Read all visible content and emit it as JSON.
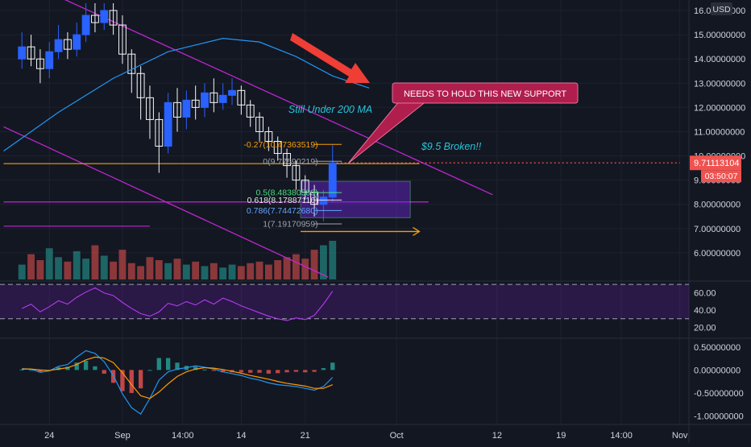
{
  "chart_data": {
    "type": "candlestick",
    "currency_label": "USD",
    "current_price": "9.71113104",
    "countdown": "03:50:07",
    "x_axis": {
      "ticks": [
        {
          "label": "24",
          "day": -7
        },
        {
          "label": "Sep",
          "day": 1
        },
        {
          "label": "14:00",
          "day": 7.6
        },
        {
          "label": "14",
          "day": 14
        },
        {
          "label": "21",
          "day": 21
        },
        {
          "label": "Oct",
          "day": 31
        },
        {
          "label": "12",
          "day": 42
        },
        {
          "label": "19",
          "day": 49
        },
        {
          "label": "14:00",
          "day": 55.6
        },
        {
          "label": "Nov",
          "day": 62
        }
      ]
    },
    "price_axis": {
      "ylim": [
        4.9,
        16.3
      ],
      "ticks": [
        "16.00000000",
        "15.00000000",
        "14.00000000",
        "13.00000000",
        "12.00000000",
        "11.00000000",
        "10.00000000",
        "9.00000000",
        "8.00000000",
        "7.00000000",
        "6.00000000"
      ]
    },
    "price_series": [
      {
        "day": -10,
        "open": 14.0,
        "close": 14.5,
        "high": 15.1,
        "low": 13.6
      },
      {
        "day": -9,
        "open": 14.5,
        "close": 14.0,
        "high": 15.0,
        "low": 13.7
      },
      {
        "day": -8,
        "open": 14.0,
        "close": 13.6,
        "high": 14.4,
        "low": 13.0
      },
      {
        "day": -7,
        "open": 13.6,
        "close": 14.3,
        "high": 14.7,
        "low": 13.2
      },
      {
        "day": -6,
        "open": 14.3,
        "close": 14.8,
        "high": 15.4,
        "low": 14.0
      },
      {
        "day": -5,
        "open": 14.8,
        "close": 14.4,
        "high": 15.1,
        "low": 14.0
      },
      {
        "day": -4,
        "open": 14.4,
        "close": 15.0,
        "high": 15.5,
        "low": 14.1
      },
      {
        "day": -3,
        "open": 15.0,
        "close": 15.8,
        "high": 16.3,
        "low": 14.7
      },
      {
        "day": -2,
        "open": 15.8,
        "close": 15.5,
        "high": 16.3,
        "low": 15.1
      },
      {
        "day": -1,
        "open": 15.5,
        "close": 16.0,
        "high": 16.3,
        "low": 15.2
      },
      {
        "day": 0,
        "open": 16.0,
        "close": 15.4,
        "high": 16.3,
        "low": 15.0
      },
      {
        "day": 1,
        "open": 15.4,
        "close": 14.2,
        "high": 15.8,
        "low": 13.8
      },
      {
        "day": 2,
        "open": 14.2,
        "close": 13.4,
        "high": 14.4,
        "low": 12.6
      },
      {
        "day": 3,
        "open": 13.4,
        "close": 12.4,
        "high": 13.7,
        "low": 11.5
      },
      {
        "day": 4,
        "open": 12.4,
        "close": 11.5,
        "high": 12.9,
        "low": 10.7
      },
      {
        "day": 5,
        "open": 11.5,
        "close": 10.4,
        "high": 11.8,
        "low": 9.3
      },
      {
        "day": 6,
        "open": 10.4,
        "close": 12.2,
        "high": 12.6,
        "low": 10.1
      },
      {
        "day": 7,
        "open": 12.2,
        "close": 11.6,
        "high": 12.8,
        "low": 11.0
      },
      {
        "day": 8,
        "open": 11.6,
        "close": 12.3,
        "high": 12.7,
        "low": 11.1
      },
      {
        "day": 9,
        "open": 12.3,
        "close": 12.0,
        "high": 12.9,
        "low": 11.5
      },
      {
        "day": 10,
        "open": 12.0,
        "close": 12.6,
        "high": 13.0,
        "low": 11.6
      },
      {
        "day": 11,
        "open": 12.6,
        "close": 12.2,
        "high": 13.2,
        "low": 11.8
      },
      {
        "day": 12,
        "open": 12.2,
        "close": 12.5,
        "high": 13.0,
        "low": 11.9
      },
      {
        "day": 13,
        "open": 12.5,
        "close": 12.7,
        "high": 13.2,
        "low": 12.1
      },
      {
        "day": 14,
        "open": 12.7,
        "close": 12.1,
        "high": 12.9,
        "low": 11.7
      },
      {
        "day": 15,
        "open": 12.1,
        "close": 11.6,
        "high": 12.3,
        "low": 11.2
      },
      {
        "day": 16,
        "open": 11.6,
        "close": 11.0,
        "high": 11.8,
        "low": 10.6
      },
      {
        "day": 17,
        "open": 11.0,
        "close": 10.6,
        "high": 11.2,
        "low": 10.2
      },
      {
        "day": 18,
        "open": 10.6,
        "close": 10.1,
        "high": 10.8,
        "low": 9.8
      },
      {
        "day": 19,
        "open": 10.1,
        "close": 9.6,
        "high": 10.3,
        "low": 9.1
      },
      {
        "day": 20,
        "open": 9.6,
        "close": 9.0,
        "high": 9.8,
        "low": 8.6
      },
      {
        "day": 21,
        "open": 9.0,
        "close": 8.5,
        "high": 9.2,
        "low": 8.2
      },
      {
        "day": 22,
        "open": 8.5,
        "close": 8.0,
        "high": 8.8,
        "low": 7.5
      },
      {
        "day": 23,
        "open": 8.0,
        "close": 8.3,
        "high": 8.6,
        "low": 7.3
      },
      {
        "day": 24,
        "open": 8.3,
        "close": 9.71,
        "high": 10.45,
        "low": 8.1
      }
    ],
    "moving_average": {
      "label": "200 MA",
      "points": [
        {
          "day": -12,
          "value": 10.2
        },
        {
          "day": -6,
          "value": 11.8
        },
        {
          "day": 0,
          "value": 13.2
        },
        {
          "day": 6,
          "value": 14.3
        },
        {
          "day": 12,
          "value": 14.85
        },
        {
          "day": 16,
          "value": 14.7
        },
        {
          "day": 20,
          "value": 14.1
        },
        {
          "day": 24,
          "value": 13.3
        },
        {
          "day": 28,
          "value": 12.8
        }
      ]
    },
    "channel_lines": [
      {
        "from": {
          "day": -12,
          "value": 17.6
        },
        "to": {
          "day": 41.5,
          "value": 8.4
        }
      },
      {
        "from": {
          "day": -12,
          "value": 11.2
        },
        "to": {
          "day": 23.5,
          "value": 5.0
        }
      }
    ],
    "horizontal_levels": [
      {
        "value": 8.1,
        "from_day": -12,
        "to_day": 34.5,
        "color": "#c026d3"
      },
      {
        "value": 7.1,
        "from_day": -12,
        "to_day": 4,
        "color": "#c026d3"
      },
      {
        "value": 9.71,
        "from_day": 24,
        "to_day": 62,
        "color": "#ef5350",
        "style": "dotted"
      },
      {
        "value": 9.68,
        "from_day": -12,
        "to_day": 33.5,
        "color": "#f59e0b"
      }
    ],
    "fibonacci": [
      {
        "label": "-0.27(10.47363519)",
        "value": 10.47363519,
        "color": "#f59e0b"
      },
      {
        "label": "0(9.77590219)",
        "value": 9.77590219,
        "color": "#9ca3af"
      },
      {
        "label": "0.5(8.48380589)",
        "value": 8.48380589,
        "color": "#4ade80"
      },
      {
        "label": "0.618(8.17887116)",
        "value": 8.17887116,
        "color": "#e5e7eb"
      },
      {
        "label": "0.786(7.74472680)",
        "value": 7.7447268,
        "color": "#60a5fa"
      },
      {
        "label": "1(7.19170959)",
        "value": 7.19170959,
        "color": "#9ca3af"
      }
    ],
    "support_zone": {
      "from_day": 20.5,
      "to_day": 32.5,
      "top": 8.95,
      "bottom": 7.45
    },
    "projection_arrow": {
      "from_day": 20.5,
      "to_day": 33.5,
      "value": 6.88
    },
    "annotations": [
      {
        "text": "NEEDS TO HOLD THIS NEW SUPPORT"
      },
      {
        "text": "Still Under 200 MA"
      },
      {
        "text": "$9.5 Broken!!"
      }
    ],
    "volume": [
      20,
      34,
      26,
      42,
      30,
      24,
      38,
      28,
      46,
      32,
      24,
      40,
      22,
      18,
      30,
      26,
      22,
      28,
      20,
      24,
      18,
      22,
      16,
      20,
      18,
      22,
      24,
      20,
      26,
      30,
      34,
      28,
      40,
      46,
      52
    ],
    "rsi": {
      "ticks": [
        "60.00",
        "40.00",
        "20.00"
      ],
      "ylim": [
        12,
        71
      ],
      "band_top": 70,
      "band_bottom": 30,
      "values": [
        42,
        47,
        38,
        44,
        51,
        47,
        55,
        61,
        66,
        60,
        57,
        49,
        42,
        36,
        33,
        38,
        48,
        45,
        50,
        46,
        52,
        47,
        54,
        50,
        45,
        41,
        37,
        33,
        30,
        28,
        31,
        29,
        34,
        47,
        62
      ]
    },
    "macd": {
      "ticks": [
        "0.50000000",
        "0.00000000",
        "-0.50000000",
        "-1.00000000"
      ],
      "ylim": [
        -1.15,
        0.62
      ],
      "macd_values": [
        0.03,
        0.02,
        -0.05,
        -0.02,
        0.08,
        0.12,
        0.28,
        0.42,
        0.36,
        0.18,
        -0.12,
        -0.52,
        -0.82,
        -0.96,
        -0.62,
        -0.22,
        -0.04,
        0.02,
        0.05,
        0.09,
        0.06,
        0.02,
        -0.04,
        -0.08,
        -0.12,
        -0.18,
        -0.22,
        -0.28,
        -0.32,
        -0.34,
        -0.36,
        -0.4,
        -0.44,
        -0.36,
        -0.16
      ],
      "signal_values": [
        0.02,
        0.02,
        0.0,
        -0.01,
        0.02,
        0.05,
        0.12,
        0.22,
        0.28,
        0.26,
        0.16,
        -0.06,
        -0.32,
        -0.56,
        -0.62,
        -0.48,
        -0.3,
        -0.14,
        -0.04,
        0.02,
        0.05,
        0.04,
        0.01,
        -0.03,
        -0.07,
        -0.12,
        -0.16,
        -0.2,
        -0.25,
        -0.29,
        -0.32,
        -0.35,
        -0.4,
        -0.4,
        -0.32
      ]
    }
  }
}
